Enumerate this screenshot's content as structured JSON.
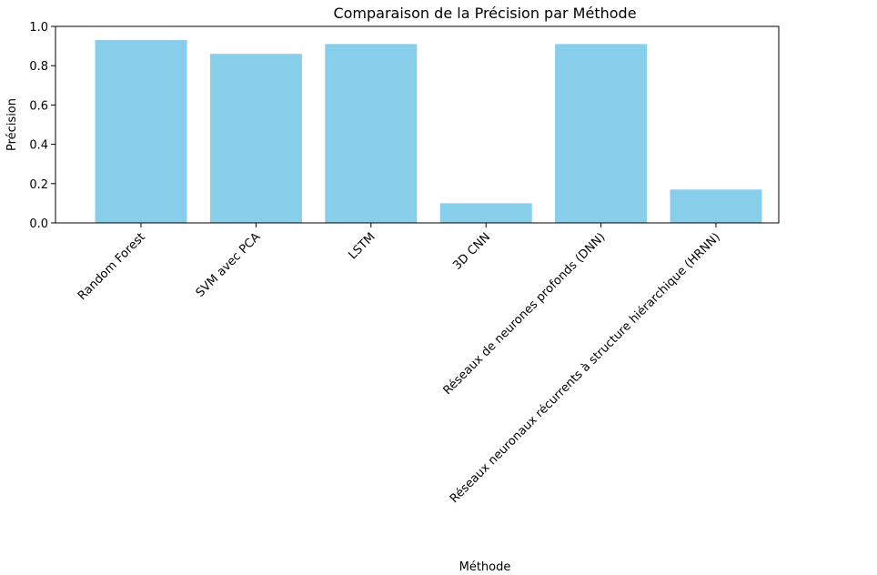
{
  "chart_data": {
    "type": "bar",
    "title": "Comparaison de la Précision par Méthode",
    "xlabel": "Méthode",
    "ylabel": "Précision",
    "categories": [
      "Random Forest",
      "SVM avec PCA",
      "LSTM",
      "3D CNN",
      "Réseaux de neurones profonds (DNN)",
      "Réseaux neuronaux récurrents à structure hiérarchique (HRNN)"
    ],
    "values": [
      0.93,
      0.86,
      0.91,
      0.1,
      0.91,
      0.17
    ],
    "ylim": [
      0,
      1.0
    ],
    "yticks": [
      "0.0",
      "0.2",
      "0.4",
      "0.6",
      "0.8",
      "1.0"
    ],
    "bar_color": "#87ceeb",
    "grid": false,
    "legend": "none"
  }
}
